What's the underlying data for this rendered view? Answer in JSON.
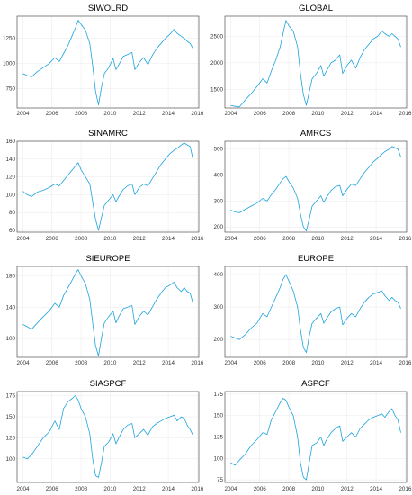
{
  "chart_data": [
    {
      "type": "line",
      "title": "SIWOLRD",
      "xlim": [
        2003.6,
        2016.1
      ],
      "ylim": [
        560,
        1470
      ],
      "yticks": [
        750,
        1000,
        1250
      ],
      "xticks": [
        2004,
        2006,
        2008,
        2010,
        2012,
        2014,
        2016
      ],
      "series": [
        {
          "x": [
            2004.0,
            2004.3,
            2004.6,
            2005.0,
            2005.4,
            2005.8,
            2006.2,
            2006.5,
            2006.8,
            2007.1,
            2007.4,
            2007.6,
            2007.8,
            2008.0,
            2008.3,
            2008.6,
            2008.8,
            2009.0,
            2009.2,
            2009.4,
            2009.6,
            2009.9,
            2010.2,
            2010.4,
            2010.6,
            2010.9,
            2011.2,
            2011.5,
            2011.7,
            2012.0,
            2012.3,
            2012.6,
            2012.9,
            2013.2,
            2013.5,
            2013.8,
            2014.1,
            2014.4,
            2014.6,
            2014.9,
            2015.1,
            2015.3,
            2015.5,
            2015.7
          ],
          "y": [
            900,
            880,
            870,
            920,
            960,
            1000,
            1060,
            1020,
            1100,
            1180,
            1280,
            1350,
            1430,
            1390,
            1330,
            1200,
            980,
            720,
            590,
            760,
            900,
            960,
            1050,
            940,
            990,
            1070,
            1090,
            1110,
            940,
            1010,
            1060,
            990,
            1080,
            1150,
            1200,
            1250,
            1290,
            1340,
            1300,
            1270,
            1250,
            1220,
            1200,
            1150
          ]
        }
      ]
    },
    {
      "type": "line",
      "title": "GLOBAL",
      "xlim": [
        2003.6,
        2016.1
      ],
      "ylim": [
        1150,
        2880
      ],
      "yticks": [
        1500,
        2000,
        2500
      ],
      "xticks": [
        2004,
        2006,
        2008,
        2010,
        2012,
        2014,
        2016
      ],
      "series": [
        {
          "x": [
            2004.0,
            2004.3,
            2004.6,
            2005.0,
            2005.4,
            2005.8,
            2006.2,
            2006.5,
            2006.8,
            2007.1,
            2007.4,
            2007.6,
            2007.8,
            2008.0,
            2008.3,
            2008.6,
            2008.8,
            2009.0,
            2009.2,
            2009.4,
            2009.6,
            2009.9,
            2010.2,
            2010.4,
            2010.6,
            2010.9,
            2011.2,
            2011.5,
            2011.7,
            2012.0,
            2012.3,
            2012.6,
            2012.9,
            2013.2,
            2013.5,
            2013.8,
            2014.1,
            2014.4,
            2014.6,
            2014.9,
            2015.1,
            2015.3,
            2015.5,
            2015.7
          ],
          "y": [
            1200,
            1180,
            1170,
            1300,
            1420,
            1550,
            1700,
            1620,
            1850,
            2050,
            2300,
            2550,
            2800,
            2700,
            2600,
            2300,
            1800,
            1400,
            1200,
            1450,
            1700,
            1800,
            1950,
            1750,
            1850,
            2000,
            2050,
            2150,
            1800,
            1950,
            2050,
            1900,
            2100,
            2250,
            2350,
            2450,
            2500,
            2600,
            2550,
            2500,
            2550,
            2500,
            2450,
            2300
          ]
        }
      ]
    },
    {
      "type": "line",
      "title": "SINAMRC",
      "xlim": [
        2003.6,
        2016.1
      ],
      "ylim": [
        58,
        160
      ],
      "yticks": [
        60,
        80,
        100,
        120,
        140,
        160
      ],
      "xticks": [
        2004,
        2006,
        2008,
        2010,
        2012,
        2014,
        2016
      ],
      "series": [
        {
          "x": [
            2004.0,
            2004.3,
            2004.6,
            2005.0,
            2005.4,
            2005.8,
            2006.2,
            2006.5,
            2006.8,
            2007.1,
            2007.4,
            2007.6,
            2007.8,
            2008.0,
            2008.3,
            2008.6,
            2008.8,
            2009.0,
            2009.2,
            2009.4,
            2009.6,
            2009.9,
            2010.2,
            2010.4,
            2010.6,
            2010.9,
            2011.2,
            2011.5,
            2011.7,
            2012.0,
            2012.3,
            2012.6,
            2012.9,
            2013.2,
            2013.5,
            2013.8,
            2014.1,
            2014.4,
            2014.6,
            2014.9,
            2015.1,
            2015.3,
            2015.5,
            2015.7
          ],
          "y": [
            104,
            100,
            98,
            103,
            105,
            108,
            112,
            110,
            116,
            122,
            128,
            132,
            136,
            128,
            120,
            112,
            92,
            72,
            60,
            74,
            88,
            94,
            100,
            92,
            98,
            106,
            110,
            112,
            100,
            108,
            112,
            110,
            118,
            126,
            134,
            140,
            146,
            150,
            152,
            156,
            158,
            156,
            154,
            140
          ]
        }
      ]
    },
    {
      "type": "line",
      "title": "AMRCS",
      "xlim": [
        2003.6,
        2016.1
      ],
      "ylim": [
        180,
        530
      ],
      "yticks": [
        200,
        300,
        400,
        500
      ],
      "xticks": [
        2004,
        2006,
        2008,
        2010,
        2012,
        2014,
        2016
      ],
      "series": [
        {
          "x": [
            2004.0,
            2004.3,
            2004.6,
            2005.0,
            2005.4,
            2005.8,
            2006.2,
            2006.5,
            2006.8,
            2007.1,
            2007.4,
            2007.6,
            2007.8,
            2008.0,
            2008.3,
            2008.6,
            2008.8,
            2009.0,
            2009.2,
            2009.4,
            2009.6,
            2009.9,
            2010.2,
            2010.4,
            2010.6,
            2010.9,
            2011.2,
            2011.5,
            2011.7,
            2012.0,
            2012.3,
            2012.6,
            2012.9,
            2013.2,
            2013.5,
            2013.8,
            2014.1,
            2014.4,
            2014.6,
            2014.9,
            2015.1,
            2015.3,
            2015.5,
            2015.7
          ],
          "y": [
            265,
            258,
            255,
            268,
            280,
            292,
            310,
            300,
            325,
            345,
            370,
            385,
            395,
            375,
            350,
            310,
            250,
            200,
            185,
            230,
            280,
            300,
            320,
            295,
            315,
            340,
            355,
            360,
            320,
            345,
            365,
            360,
            385,
            410,
            430,
            450,
            465,
            480,
            490,
            500,
            510,
            505,
            500,
            470
          ]
        }
      ]
    },
    {
      "type": "line",
      "title": "SIEUROPE",
      "xlim": [
        2003.6,
        2016.1
      ],
      "ylim": [
        76,
        192
      ],
      "yticks": [
        100,
        140,
        180
      ],
      "xticks": [
        2004,
        2006,
        2008,
        2010,
        2012,
        2014,
        2016
      ],
      "series": [
        {
          "x": [
            2004.0,
            2004.3,
            2004.6,
            2005.0,
            2005.4,
            2005.8,
            2006.2,
            2006.5,
            2006.8,
            2007.1,
            2007.4,
            2007.6,
            2007.8,
            2008.0,
            2008.3,
            2008.6,
            2008.8,
            2009.0,
            2009.2,
            2009.4,
            2009.6,
            2009.9,
            2010.2,
            2010.4,
            2010.6,
            2010.9,
            2011.2,
            2011.5,
            2011.7,
            2012.0,
            2012.3,
            2012.6,
            2012.9,
            2013.2,
            2013.5,
            2013.8,
            2014.1,
            2014.4,
            2014.6,
            2014.9,
            2015.1,
            2015.3,
            2015.5,
            2015.7
          ],
          "y": [
            118,
            115,
            112,
            120,
            128,
            135,
            145,
            140,
            155,
            165,
            175,
            182,
            188,
            180,
            170,
            150,
            120,
            90,
            78,
            100,
            120,
            128,
            135,
            120,
            128,
            138,
            140,
            142,
            118,
            128,
            135,
            130,
            140,
            150,
            158,
            165,
            168,
            172,
            165,
            160,
            165,
            160,
            158,
            145
          ]
        }
      ]
    },
    {
      "type": "line",
      "title": "EUROPE",
      "xlim": [
        2003.6,
        2016.1
      ],
      "ylim": [
        145,
        425
      ],
      "yticks": [
        200,
        300,
        400
      ],
      "xticks": [
        2004,
        2006,
        2008,
        2010,
        2012,
        2014,
        2016
      ],
      "series": [
        {
          "x": [
            2004.0,
            2004.3,
            2004.6,
            2005.0,
            2005.4,
            2005.8,
            2006.2,
            2006.5,
            2006.8,
            2007.1,
            2007.4,
            2007.6,
            2007.8,
            2008.0,
            2008.3,
            2008.6,
            2008.8,
            2009.0,
            2009.2,
            2009.4,
            2009.6,
            2009.9,
            2010.2,
            2010.4,
            2010.6,
            2010.9,
            2011.2,
            2011.5,
            2011.7,
            2012.0,
            2012.3,
            2012.6,
            2012.9,
            2013.2,
            2013.5,
            2013.8,
            2014.1,
            2014.4,
            2014.6,
            2014.9,
            2015.1,
            2015.3,
            2015.5,
            2015.7
          ],
          "y": [
            210,
            205,
            200,
            215,
            235,
            250,
            280,
            270,
            300,
            330,
            360,
            385,
            400,
            380,
            350,
            300,
            230,
            175,
            160,
            210,
            250,
            265,
            280,
            250,
            265,
            285,
            295,
            300,
            245,
            265,
            280,
            270,
            295,
            315,
            330,
            340,
            345,
            350,
            335,
            320,
            330,
            320,
            315,
            295
          ]
        }
      ]
    },
    {
      "type": "line",
      "title": "SIASPCF",
      "xlim": [
        2003.6,
        2016.1
      ],
      "ylim": [
        72,
        180
      ],
      "yticks": [
        100,
        125,
        150,
        175
      ],
      "xticks": [
        2004,
        2006,
        2008,
        2010,
        2012,
        2014,
        2016
      ],
      "series": [
        {
          "x": [
            2004.0,
            2004.3,
            2004.6,
            2005.0,
            2005.4,
            2005.8,
            2006.2,
            2006.5,
            2006.8,
            2007.1,
            2007.4,
            2007.6,
            2007.8,
            2008.0,
            2008.3,
            2008.6,
            2008.8,
            2009.0,
            2009.2,
            2009.4,
            2009.6,
            2009.9,
            2010.2,
            2010.4,
            2010.6,
            2010.9,
            2011.2,
            2011.5,
            2011.7,
            2012.0,
            2012.3,
            2012.6,
            2012.9,
            2013.2,
            2013.5,
            2013.8,
            2014.1,
            2014.4,
            2014.6,
            2014.9,
            2015.1,
            2015.3,
            2015.5,
            2015.7
          ],
          "y": [
            102,
            100,
            105,
            115,
            125,
            132,
            145,
            135,
            160,
            168,
            172,
            175,
            170,
            160,
            150,
            130,
            100,
            80,
            78,
            95,
            115,
            120,
            130,
            118,
            125,
            135,
            140,
            142,
            125,
            130,
            135,
            128,
            138,
            142,
            145,
            148,
            150,
            152,
            145,
            150,
            148,
            140,
            135,
            128
          ]
        }
      ]
    },
    {
      "type": "line",
      "title": "ASPCF",
      "xlim": [
        2003.6,
        2016.1
      ],
      "ylim": [
        72,
        178
      ],
      "yticks": [
        75,
        100,
        125,
        150,
        175
      ],
      "xticks": [
        2004,
        2006,
        2008,
        2010,
        2012,
        2014,
        2016
      ],
      "series": [
        {
          "x": [
            2004.0,
            2004.3,
            2004.6,
            2005.0,
            2005.4,
            2005.8,
            2006.2,
            2006.5,
            2006.8,
            2007.1,
            2007.4,
            2007.6,
            2007.8,
            2008.0,
            2008.3,
            2008.6,
            2008.8,
            2009.0,
            2009.2,
            2009.4,
            2009.6,
            2009.9,
            2010.2,
            2010.4,
            2010.6,
            2010.9,
            2011.2,
            2011.5,
            2011.7,
            2012.0,
            2012.3,
            2012.6,
            2012.9,
            2013.2,
            2013.5,
            2013.8,
            2014.1,
            2014.4,
            2014.6,
            2014.9,
            2015.1,
            2015.3,
            2015.5,
            2015.7
          ],
          "y": [
            95,
            92,
            98,
            105,
            115,
            122,
            130,
            128,
            145,
            155,
            165,
            170,
            168,
            160,
            150,
            125,
            95,
            78,
            75,
            95,
            115,
            118,
            125,
            115,
            122,
            130,
            135,
            138,
            120,
            125,
            130,
            125,
            135,
            140,
            145,
            148,
            150,
            152,
            148,
            155,
            158,
            150,
            145,
            130
          ]
        }
      ]
    }
  ],
  "colors": {
    "series": "#1ca3dd",
    "frame": "#333333",
    "grid": "#e9e9e9",
    "text": "#000000"
  }
}
